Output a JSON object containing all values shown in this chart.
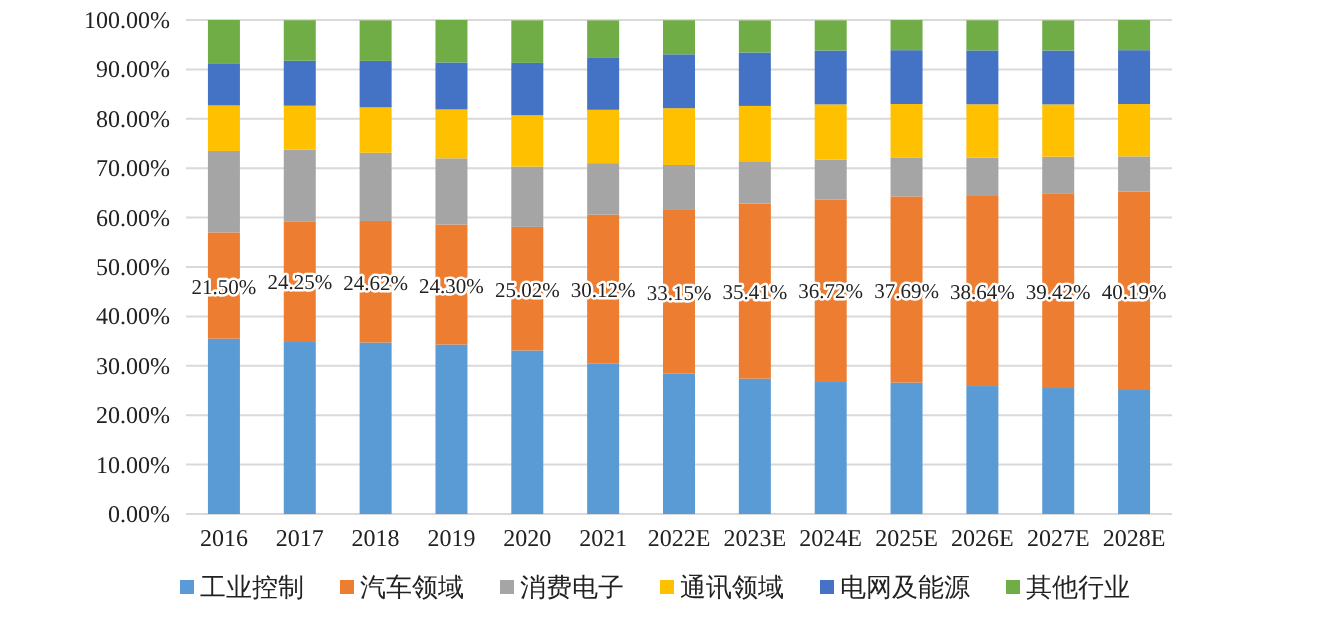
{
  "chart_data": {
    "type": "bar",
    "stacked": true,
    "grid": "y",
    "legend": "bottom",
    "categories": [
      "2016",
      "2017",
      "2018",
      "2019",
      "2020",
      "2021",
      "2022E",
      "2023E",
      "2024E",
      "2025E",
      "2026E",
      "2027E",
      "2028E"
    ],
    "ylim": [
      0,
      100
    ],
    "yticks": [
      {
        "value": 0,
        "label": "0.00%"
      },
      {
        "value": 10,
        "label": "10.00%"
      },
      {
        "value": 20,
        "label": "20.00%"
      },
      {
        "value": 30,
        "label": "30.00%"
      },
      {
        "value": 40,
        "label": "40.00%"
      },
      {
        "value": 50,
        "label": "50.00%"
      },
      {
        "value": 60,
        "label": "60.00%"
      },
      {
        "value": 70,
        "label": "70.00%"
      },
      {
        "value": 80,
        "label": "80.00%"
      },
      {
        "value": 90,
        "label": "90.00%"
      },
      {
        "value": 100,
        "label": "100.00%"
      }
    ],
    "series": [
      {
        "name": "工业控制",
        "color": "#5b9bd5",
        "values": [
          35.5,
          35.0,
          34.7,
          34.3,
          33.1,
          30.5,
          28.4,
          27.4,
          26.9,
          26.6,
          25.9,
          25.5,
          25.1
        ]
      },
      {
        "name": "汽车领域",
        "color": "#ed7d31",
        "values": [
          21.5,
          24.25,
          24.62,
          24.3,
          25.02,
          30.12,
          33.15,
          35.41,
          36.72,
          37.69,
          38.64,
          39.42,
          40.19
        ],
        "value_labels": [
          "21.50%",
          "24.25%",
          "24.62%",
          "24.30%",
          "25.02%",
          "30.12%",
          "33.15%",
          "35.41%",
          "36.72%",
          "37.69%",
          "38.64%",
          "39.42%",
          "40.19%"
        ]
      },
      {
        "name": "消费电子",
        "color": "#a5a5a5",
        "values": [
          16.5,
          14.5,
          13.8,
          13.4,
          12.2,
          10.4,
          9.1,
          8.6,
          8.1,
          7.9,
          7.6,
          7.4,
          7.1
        ]
      },
      {
        "name": "通讯领域",
        "color": "#ffc000",
        "values": [
          9.2,
          8.9,
          9.2,
          9.9,
          10.4,
          10.8,
          11.5,
          11.2,
          11.2,
          10.8,
          10.8,
          10.6,
          10.6
        ]
      },
      {
        "name": "电网及能源",
        "color": "#4472c4",
        "values": [
          8.4,
          9.1,
          9.4,
          9.5,
          10.6,
          10.5,
          10.9,
          10.8,
          10.9,
          10.9,
          10.9,
          10.9,
          10.9
        ]
      },
      {
        "name": "其他行业",
        "color": "#70ad47",
        "values": [
          8.9,
          8.2,
          8.2,
          8.6,
          8.6,
          7.6,
          6.9,
          6.5,
          6.1,
          6.1,
          6.1,
          6.1,
          6.1
        ]
      }
    ]
  }
}
